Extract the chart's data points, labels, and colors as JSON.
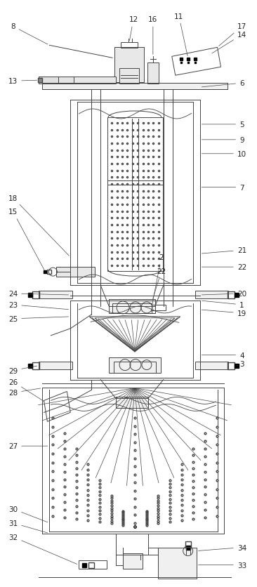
{
  "fig_width": 3.66,
  "fig_height": 8.37,
  "dpi": 100,
  "bg_color": "#ffffff",
  "lc": "#444444",
  "lw": 0.7
}
